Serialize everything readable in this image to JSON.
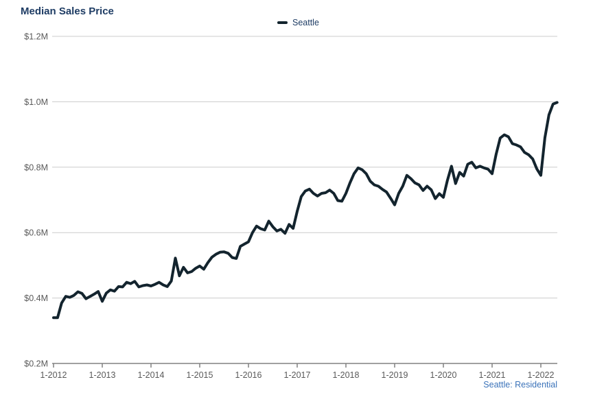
{
  "title": "Median Sales Price",
  "legend": {
    "label": "Seattle"
  },
  "footer": {
    "label": "Seattle: Residential"
  },
  "colors": {
    "title": "#1e3c64",
    "line": "#13242e",
    "legend_text": "#1e3c64",
    "axis_label": "#595959",
    "grid": "#cccccc",
    "axis_line": "#808080",
    "footer": "#3a72b9",
    "background": "#ffffff"
  },
  "chart_data": {
    "type": "line",
    "title": "Median Sales Price",
    "unit": "USD millions",
    "grid": "horizontal",
    "legend_position": "top-center",
    "ylim": [
      0.2,
      1.2
    ],
    "y_tick_values": [
      0.2,
      0.4,
      0.6,
      0.8,
      1.0,
      1.2
    ],
    "y_tick_labels": [
      "$0.2M",
      "$0.4M",
      "$0.6M",
      "$0.8M",
      "$1.0M",
      "$1.2M"
    ],
    "x_tick_labels": [
      "1-2012",
      "1-2013",
      "1-2014",
      "1-2015",
      "1-2016",
      "1-2017",
      "1-2018",
      "1-2019",
      "1-2020",
      "1-2021",
      "1-2022"
    ],
    "x": [
      "2012-01",
      "2012-02",
      "2012-03",
      "2012-04",
      "2012-05",
      "2012-06",
      "2012-07",
      "2012-08",
      "2012-09",
      "2012-10",
      "2012-11",
      "2012-12",
      "2013-01",
      "2013-02",
      "2013-03",
      "2013-04",
      "2013-05",
      "2013-06",
      "2013-07",
      "2013-08",
      "2013-09",
      "2013-10",
      "2013-11",
      "2013-12",
      "2014-01",
      "2014-02",
      "2014-03",
      "2014-04",
      "2014-05",
      "2014-06",
      "2014-07",
      "2014-08",
      "2014-09",
      "2014-10",
      "2014-11",
      "2014-12",
      "2015-01",
      "2015-02",
      "2015-03",
      "2015-04",
      "2015-05",
      "2015-06",
      "2015-07",
      "2015-08",
      "2015-09",
      "2015-10",
      "2015-11",
      "2015-12",
      "2016-01",
      "2016-02",
      "2016-03",
      "2016-04",
      "2016-05",
      "2016-06",
      "2016-07",
      "2016-08",
      "2016-09",
      "2016-10",
      "2016-11",
      "2016-12",
      "2017-01",
      "2017-02",
      "2017-03",
      "2017-04",
      "2017-05",
      "2017-06",
      "2017-07",
      "2017-08",
      "2017-09",
      "2017-10",
      "2017-11",
      "2017-12",
      "2018-01",
      "2018-02",
      "2018-03",
      "2018-04",
      "2018-05",
      "2018-06",
      "2018-07",
      "2018-08",
      "2018-09",
      "2018-10",
      "2018-11",
      "2018-12",
      "2019-01",
      "2019-02",
      "2019-03",
      "2019-04",
      "2019-05",
      "2019-06",
      "2019-07",
      "2019-08",
      "2019-09",
      "2019-10",
      "2019-11",
      "2019-12",
      "2020-01",
      "2020-02",
      "2020-03",
      "2020-04",
      "2020-05",
      "2020-06",
      "2020-07",
      "2020-08",
      "2020-09",
      "2020-10",
      "2020-11",
      "2020-12",
      "2021-01",
      "2021-02",
      "2021-03",
      "2021-04",
      "2021-05",
      "2021-06",
      "2021-07",
      "2021-08",
      "2021-09",
      "2021-10",
      "2021-11",
      "2021-12",
      "2022-01",
      "2022-02",
      "2022-03",
      "2022-04",
      "2022-05"
    ],
    "series": [
      {
        "name": "Seattle",
        "values": [
          0.34,
          0.34,
          0.385,
          0.405,
          0.402,
          0.408,
          0.419,
          0.414,
          0.398,
          0.405,
          0.412,
          0.42,
          0.39,
          0.415,
          0.425,
          0.421,
          0.435,
          0.434,
          0.448,
          0.444,
          0.451,
          0.434,
          0.438,
          0.44,
          0.437,
          0.442,
          0.448,
          0.44,
          0.435,
          0.452,
          0.522,
          0.468,
          0.494,
          0.477,
          0.481,
          0.491,
          0.498,
          0.488,
          0.508,
          0.525,
          0.534,
          0.54,
          0.541,
          0.537,
          0.524,
          0.521,
          0.558,
          0.565,
          0.572,
          0.6,
          0.62,
          0.612,
          0.608,
          0.635,
          0.618,
          0.605,
          0.61,
          0.598,
          0.625,
          0.613,
          0.665,
          0.71,
          0.727,
          0.733,
          0.72,
          0.712,
          0.72,
          0.722,
          0.73,
          0.72,
          0.698,
          0.696,
          0.72,
          0.752,
          0.78,
          0.798,
          0.792,
          0.78,
          0.757,
          0.746,
          0.742,
          0.732,
          0.724,
          0.705,
          0.685,
          0.72,
          0.742,
          0.775,
          0.765,
          0.752,
          0.746,
          0.729,
          0.742,
          0.731,
          0.704,
          0.719,
          0.708,
          0.76,
          0.803,
          0.75,
          0.784,
          0.773,
          0.809,
          0.815,
          0.798,
          0.803,
          0.798,
          0.794,
          0.78,
          0.84,
          0.889,
          0.899,
          0.893,
          0.872,
          0.868,
          0.862,
          0.845,
          0.838,
          0.825,
          0.795,
          0.775,
          0.89,
          0.96,
          0.993,
          0.998
        ]
      }
    ]
  }
}
